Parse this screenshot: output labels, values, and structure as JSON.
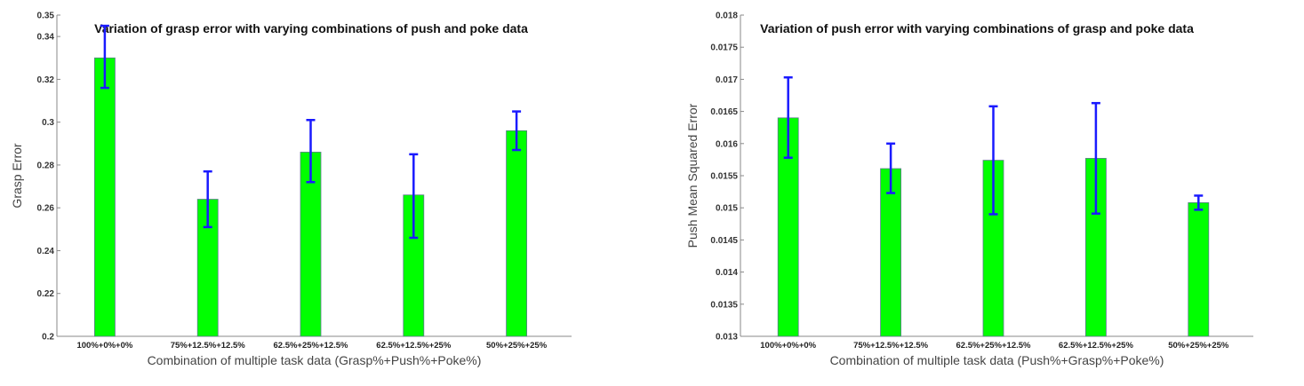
{
  "chart_data": [
    {
      "type": "bar",
      "title": "Variation of grasp error with varying combinations of push and poke data",
      "xlabel": "Combination of multiple task data (Grasp%+Push%+Poke%)",
      "ylabel": "Grasp Error",
      "categories": [
        "100%+0%+0%",
        "75%+12.5%+12.5%",
        "62.5%+25%+12.5%",
        "62.5%+12.5%+25%",
        "50%+25%+25%"
      ],
      "values": [
        0.33,
        0.264,
        0.286,
        0.266,
        0.296
      ],
      "error_low": [
        0.316,
        0.251,
        0.272,
        0.246,
        0.287
      ],
      "error_high": [
        0.345,
        0.277,
        0.301,
        0.285,
        0.305
      ],
      "ylim": [
        0.2,
        0.35
      ],
      "yticks": [
        "0.2",
        "0.22",
        "0.24",
        "0.26",
        "0.28",
        "0.3",
        "0.32",
        "0.34",
        "0.35"
      ],
      "ytick_values": [
        0.2,
        0.22,
        0.24,
        0.26,
        0.28,
        0.3,
        0.32,
        0.34,
        0.35
      ],
      "grid": false,
      "bar_color": "#00ff00",
      "error_color": "#1a1aff"
    },
    {
      "type": "bar",
      "title": "Variation of push error with varying combinations of grasp and poke data",
      "xlabel": "Combination of multiple task data (Push%+Grasp%+Poke%)",
      "ylabel": "Push Mean Squared Error",
      "categories": [
        "100%+0%+0%",
        "75%+12.5%+12.5%",
        "62.5%+25%+12.5%",
        "62.5%+12.5%+25%",
        "50%+25%+25%"
      ],
      "values": [
        0.0164,
        0.01561,
        0.01574,
        0.01577,
        0.01508
      ],
      "error_low": [
        0.01578,
        0.01523,
        0.0149,
        0.01491,
        0.01497
      ],
      "error_high": [
        0.01703,
        0.016,
        0.01658,
        0.01663,
        0.01519
      ],
      "ylim": [
        0.013,
        0.018
      ],
      "yticks": [
        "0.013",
        "0.0135",
        "0.014",
        "0.0145",
        "0.015",
        "0.0155",
        "0.016",
        "0.0165",
        "0.017",
        "0.0175",
        "0.018"
      ],
      "ytick_values": [
        0.013,
        0.0135,
        0.014,
        0.0145,
        0.015,
        0.0155,
        0.016,
        0.0165,
        0.017,
        0.0175,
        0.018
      ],
      "grid": false,
      "bar_color": "#00ff00",
      "error_color": "#1a1aff"
    }
  ]
}
